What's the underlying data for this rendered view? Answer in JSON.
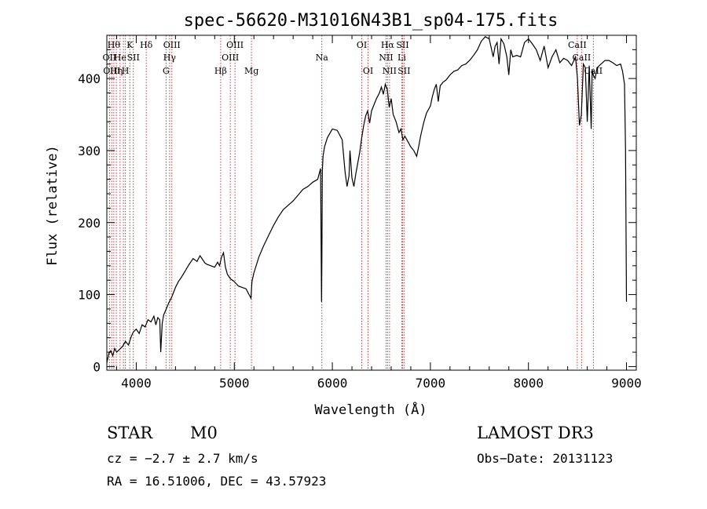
{
  "chart_data": {
    "type": "line",
    "title": "spec-56620-M31016N43B1_sp04-175.fits",
    "xlabel": "Wavelength (Å)",
    "ylabel": "Flux (relative)",
    "xlim": [
      3700,
      9100
    ],
    "ylim": [
      -5,
      460
    ],
    "x_ticks": [
      4000,
      5000,
      6000,
      7000,
      8000,
      9000
    ],
    "y_ticks": [
      0,
      100,
      200,
      300,
      400
    ],
    "line_color": "#000000",
    "marker_color": "#c83c3c",
    "series": [
      {
        "name": "spectrum",
        "x": [
          3700,
          3720,
          3740,
          3760,
          3780,
          3800,
          3830,
          3860,
          3890,
          3920,
          3950,
          3970,
          4000,
          4030,
          4060,
          4090,
          4120,
          4150,
          4180,
          4200,
          4220,
          4240,
          4250,
          4265,
          4280,
          4300,
          4330,
          4360,
          4400,
          4430,
          4460,
          4500,
          4540,
          4580,
          4620,
          4650,
          4680,
          4700,
          4720,
          4760,
          4800,
          4830,
          4850,
          4870,
          4890,
          4910,
          4930,
          4960,
          5000,
          5040,
          5080,
          5120,
          5150,
          5170,
          5180,
          5200,
          5250,
          5300,
          5350,
          5400,
          5450,
          5500,
          5550,
          5600,
          5650,
          5700,
          5750,
          5800,
          5850,
          5880,
          5890,
          5894,
          5898,
          5905,
          5920,
          5950,
          6000,
          6050,
          6100,
          6130,
          6150,
          6170,
          6180,
          6200,
          6220,
          6240,
          6260,
          6280,
          6300,
          6320,
          6340,
          6360,
          6380,
          6400,
          6420,
          6450,
          6480,
          6500,
          6520,
          6540,
          6560,
          6580,
          6600,
          6620,
          6650,
          6680,
          6700,
          6720,
          6740,
          6760,
          6780,
          6800,
          6830,
          6860,
          6880,
          6900,
          6930,
          6960,
          7000,
          7020,
          7040,
          7060,
          7080,
          7100,
          7130,
          7160,
          7200,
          7240,
          7280,
          7320,
          7360,
          7400,
          7440,
          7480,
          7520,
          7560,
          7600,
          7640,
          7660,
          7680,
          7700,
          7720,
          7750,
          7780,
          7800,
          7820,
          7840,
          7880,
          7920,
          7960,
          8000,
          8040,
          8080,
          8120,
          8160,
          8200,
          8240,
          8280,
          8320,
          8360,
          8400,
          8440,
          8480,
          8500,
          8520,
          8540,
          8560,
          8580,
          8600,
          8620,
          8640,
          8650,
          8660,
          8680,
          8700,
          8740,
          8780,
          8820,
          8860,
          8900,
          8940,
          8960,
          8980,
          8990,
          9000
        ],
        "y": [
          5,
          18,
          22,
          15,
          25,
          20,
          24,
          28,
          35,
          30,
          42,
          48,
          52,
          46,
          58,
          55,
          65,
          62,
          70,
          58,
          68,
          65,
          20,
          60,
          72,
          78,
          88,
          96,
          110,
          118,
          124,
          133,
          142,
          150,
          146,
          154,
          148,
          144,
          142,
          140,
          138,
          145,
          140,
          152,
          158,
          138,
          128,
          122,
          118,
          112,
          110,
          108,
          100,
          95,
          118,
          130,
          152,
          168,
          182,
          196,
          208,
          218,
          224,
          230,
          238,
          246,
          250,
          256,
          260,
          275,
          90,
          160,
          270,
          292,
          305,
          318,
          330,
          328,
          315,
          270,
          250,
          265,
          300,
          262,
          250,
          268,
          283,
          298,
          318,
          335,
          348,
          355,
          338,
          355,
          362,
          372,
          380,
          388,
          378,
          392,
          385,
          360,
          372,
          350,
          340,
          325,
          330,
          315,
          320,
          315,
          310,
          305,
          300,
          292,
          305,
          320,
          338,
          352,
          362,
          375,
          385,
          392,
          368,
          390,
          395,
          398,
          405,
          410,
          412,
          418,
          420,
          425,
          432,
          440,
          452,
          458,
          455,
          430,
          445,
          450,
          420,
          455,
          448,
          430,
          405,
          440,
          430,
          432,
          430,
          450,
          455,
          448,
          440,
          425,
          445,
          415,
          430,
          440,
          422,
          428,
          425,
          418,
          430,
          400,
          335,
          350,
          420,
          415,
          340,
          418,
          330,
          412,
          405,
          400,
          415,
          420,
          425,
          425,
          422,
          418,
          420,
          410,
          392,
          300,
          90
        ]
      }
    ],
    "line_markers": [
      {
        "x": 3727,
        "label": "OII",
        "row": 1
      },
      {
        "x": 3750,
        "label": "OIII",
        "row": 2
      },
      {
        "x": 3771,
        "label": "Hθ",
        "row": 0
      },
      {
        "x": 3797,
        "label": "Hη",
        "row": 2
      },
      {
        "x": 3835,
        "label": "He",
        "row": 1
      },
      {
        "x": 3869,
        "label": "",
        "row": -1
      },
      {
        "x": 3889,
        "label": "H",
        "row": 2
      },
      {
        "x": 3934,
        "label": "K",
        "row": 0
      },
      {
        "x": 3970,
        "label": "SII",
        "row": 1
      },
      {
        "x": 4102,
        "label": "Hδ",
        "row": 0
      },
      {
        "x": 4304,
        "label": "G",
        "row": 2
      },
      {
        "x": 4340,
        "label": "Hγ",
        "row": 1
      },
      {
        "x": 4363,
        "label": "OIII",
        "row": 0
      },
      {
        "x": 4861,
        "label": "Hβ",
        "row": 2
      },
      {
        "x": 4959,
        "label": "OIII",
        "row": 1
      },
      {
        "x": 5007,
        "label": "OIII",
        "row": 0
      },
      {
        "x": 5175,
        "label": "Mg",
        "row": 2
      },
      {
        "x": 5893,
        "label": "Na",
        "row": 1
      },
      {
        "x": 6300,
        "label": "OI",
        "row": 0
      },
      {
        "x": 6364,
        "label": "OI",
        "row": 2
      },
      {
        "x": 6548,
        "label": "NII",
        "row": 1
      },
      {
        "x": 6563,
        "label": "Hα",
        "row": 0
      },
      {
        "x": 6583,
        "label": "NII",
        "row": 2
      },
      {
        "x": 6708,
        "label": "Li",
        "row": 1
      },
      {
        "x": 6716,
        "label": "SII",
        "row": 0
      },
      {
        "x": 6731,
        "label": "SII",
        "row": 2
      },
      {
        "x": 8498,
        "label": "CaII",
        "row": 0
      },
      {
        "x": 8542,
        "label": "CaII",
        "row": 1
      },
      {
        "x": 8662,
        "label": "CaII",
        "row": 2
      }
    ]
  },
  "info": {
    "object_class": "STAR",
    "subclass": "M0",
    "survey": "LAMOST DR3",
    "cz_text": "cz = −2.7 ± 2.7 km/s",
    "obs_date": "Obs−Date: 20131123",
    "coords": "RA =  16.51006, DEC =  43.57923"
  }
}
